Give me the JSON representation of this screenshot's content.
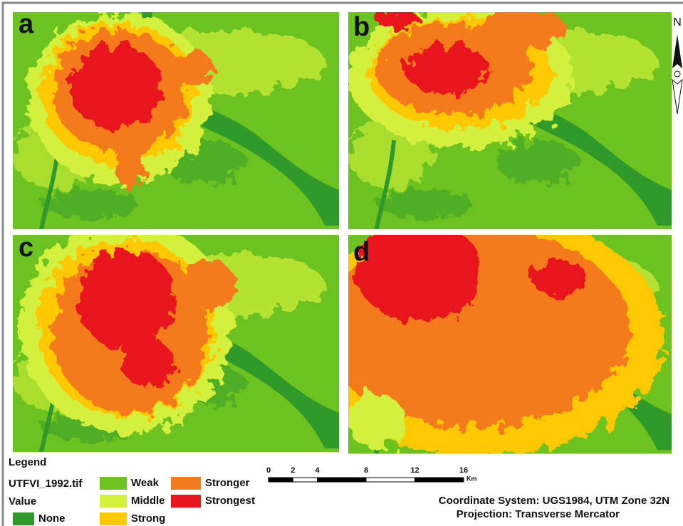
{
  "panels": [
    {
      "label": "a"
    },
    {
      "label": "b"
    },
    {
      "label": "c"
    },
    {
      "label": "d"
    }
  ],
  "north_arrow": {
    "label": "N"
  },
  "legend": {
    "title": "Legend",
    "layer": "UTFVI_1992.tif",
    "field": "Value",
    "classes": [
      {
        "name": "None",
        "color": "#2f9a2a"
      },
      {
        "name": "Weak",
        "color": "#6cc21f"
      },
      {
        "name": "Middle",
        "color": "#d2f03c"
      },
      {
        "name": "Strong",
        "color": "#ffc800"
      },
      {
        "name": "Stronger",
        "color": "#f47a1f"
      },
      {
        "name": "Strongest",
        "color": "#e8161c"
      }
    ]
  },
  "scale_bar": {
    "ticks": [
      0,
      2,
      4,
      8,
      12,
      16
    ],
    "unit": "Km"
  },
  "coordinate_system": "Coordinate System: UGS1984, UTM Zone 32N",
  "projection": "Projection: Transverse Mercator"
}
